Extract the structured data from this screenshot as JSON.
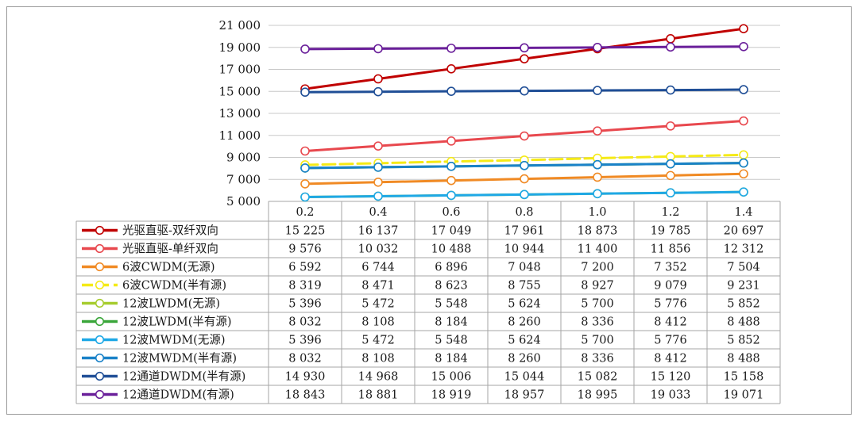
{
  "chart_data": {
    "type": "line",
    "title": "",
    "xlabel": "",
    "ylabel": "",
    "ylim": [
      5000,
      21000
    ],
    "yticks": [
      5000,
      7000,
      9000,
      11000,
      13000,
      15000,
      17000,
      19000,
      21000
    ],
    "ytick_labels": [
      "5 000",
      "7 000",
      "9 000",
      "11 000",
      "13 000",
      "15 000",
      "17 000",
      "19 000",
      "21 000"
    ],
    "categories": [
      "0.2",
      "0.4",
      "0.6",
      "0.8",
      "1.0",
      "1.2",
      "1.4"
    ],
    "grid": true,
    "legend_placement": "table-below",
    "series": [
      {
        "name": "光驱直驱-双纤双向",
        "color": "#c00000",
        "values": [
          15225,
          16137,
          17049,
          17961,
          18873,
          19785,
          20697
        ],
        "labels": [
          "15 225",
          "16 137",
          "17 049",
          "17 961",
          "18 873",
          "19 785",
          "20 697"
        ]
      },
      {
        "name": "光驱直驱-单纤双向",
        "color": "#e8484e",
        "values": [
          9576,
          10032,
          10488,
          10944,
          11400,
          11856,
          12312
        ],
        "labels": [
          "9 576",
          "10 032",
          "10 488",
          "10 944",
          "11 400",
          "11 856",
          "12 312"
        ]
      },
      {
        "name": "6波CWDM(无源)",
        "color": "#f08a24",
        "values": [
          6592,
          6744,
          6896,
          7048,
          7200,
          7352,
          7504
        ],
        "labels": [
          "6 592",
          "6 744",
          "6 896",
          "7 048",
          "7 200",
          "7 352",
          "7 504"
        ]
      },
      {
        "name": "6波CWDM(半有源)",
        "color": "#f5ea16",
        "dashed": true,
        "values": [
          8319,
          8471,
          8623,
          8755,
          8927,
          9079,
          9231
        ],
        "labels": [
          "8 319",
          "8 471",
          "8 623",
          "8 755",
          "8 927",
          "9 079",
          "9 231"
        ]
      },
      {
        "name": "12波LWDM(无源)",
        "color": "#a6cc2e",
        "values": [
          5396,
          5472,
          5548,
          5624,
          5700,
          5776,
          5852
        ],
        "labels": [
          "5 396",
          "5 472",
          "5 548",
          "5 624",
          "5 700",
          "5 776",
          "5 852"
        ]
      },
      {
        "name": "12波LWDM(半有源)",
        "color": "#3aa63a",
        "values": [
          8032,
          8108,
          8184,
          8260,
          8336,
          8412,
          8488
        ],
        "labels": [
          "8 032",
          "8 108",
          "8 184",
          "8 260",
          "8 336",
          "8 412",
          "8 488"
        ]
      },
      {
        "name": "12波MWDM(无源)",
        "color": "#1ea8e6",
        "values": [
          5396,
          5472,
          5548,
          5624,
          5700,
          5776,
          5852
        ],
        "labels": [
          "5 396",
          "5 472",
          "5 548",
          "5 624",
          "5 700",
          "5 776",
          "5 852"
        ]
      },
      {
        "name": "12波MWDM(半有源)",
        "color": "#1a82c8",
        "values": [
          8032,
          8108,
          8184,
          8260,
          8336,
          8412,
          8488
        ],
        "labels": [
          "8 032",
          "8 108",
          "8 184",
          "8 260",
          "8 336",
          "8 412",
          "8 488"
        ]
      },
      {
        "name": "12通道DWDM(半有源)",
        "color": "#1f4e96",
        "values": [
          14930,
          14968,
          15006,
          15044,
          15082,
          15120,
          15158
        ],
        "labels": [
          "14 930",
          "14 968",
          "15 006",
          "15 044",
          "15 082",
          "15 120",
          "15 158"
        ]
      },
      {
        "name": "12通道DWDM(有源)",
        "color": "#6a1f9a",
        "values": [
          18843,
          18881,
          18919,
          18957,
          18995,
          19033,
          19071
        ],
        "labels": [
          "18 843",
          "18 881",
          "18 919",
          "18 957",
          "18 995",
          "19 033",
          "19 071"
        ]
      }
    ]
  }
}
